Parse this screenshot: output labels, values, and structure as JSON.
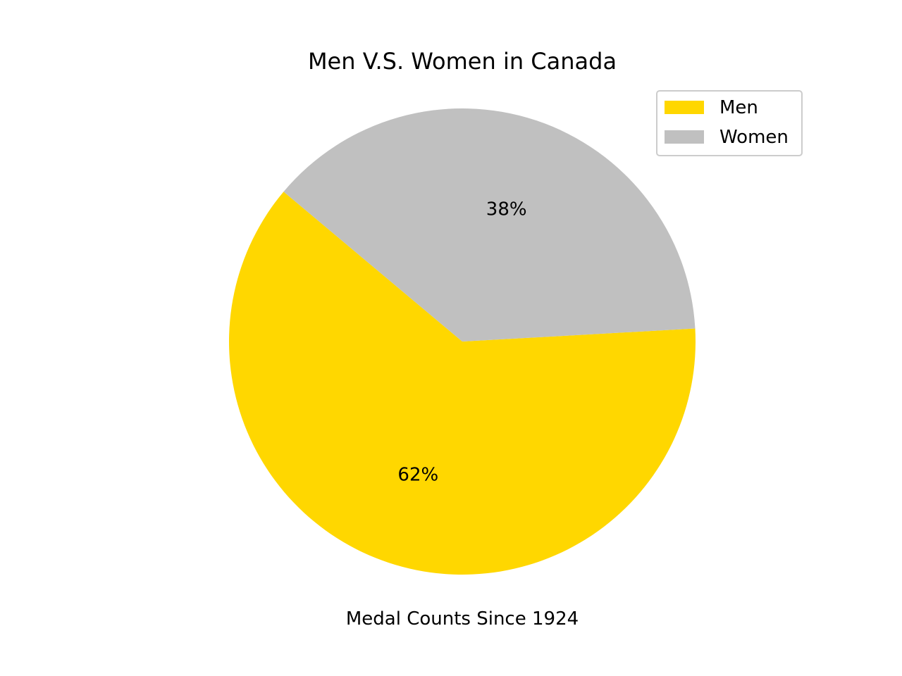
{
  "chart_data": {
    "type": "pie",
    "title": "Men V.S. Women in Canada",
    "xlabel": "Medal Counts Since 1924",
    "ylabel": "",
    "start_angle_deg": 140,
    "direction": "counterclockwise",
    "legend_position": "top-right",
    "slices": [
      {
        "label": "Men",
        "value": 62,
        "pct_label": "62%",
        "color": "#FFD700"
      },
      {
        "label": "Women",
        "value": 38,
        "pct_label": "38%",
        "color": "#C0C0C0"
      }
    ]
  }
}
